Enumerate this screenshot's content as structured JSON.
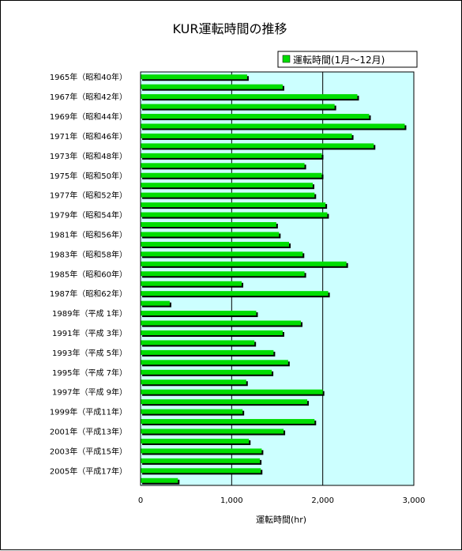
{
  "chart_data": {
    "type": "bar",
    "orientation": "horizontal",
    "title": "KUR運転時間の推移",
    "xlabel": "運転時間(hr)",
    "ylabel": "",
    "xlim": [
      0,
      3000
    ],
    "x_ticks": [
      "0",
      "1,000",
      "2,000",
      "3,000"
    ],
    "grid": "vertical",
    "legend_position": "top-right",
    "series": [
      {
        "name": "運転時間(1月〜12月)",
        "values": [
          1170,
          1560,
          2380,
          2130,
          2510,
          2900,
          2320,
          2560,
          1990,
          1800,
          1990,
          1890,
          1910,
          2030,
          2050,
          1490,
          1520,
          1630,
          1780,
          2260,
          1800,
          1110,
          2060,
          320,
          1270,
          1760,
          1560,
          1250,
          1460,
          1620,
          1440,
          1160,
          2000,
          1830,
          1120,
          1910,
          1570,
          1190,
          1330,
          1310,
          1320,
          410
        ]
      }
    ],
    "category_labels": [
      "1965年（昭和40年）",
      "",
      "1967年（昭和42年）",
      "",
      "1969年（昭和44年）",
      "",
      "1971年（昭和46年）",
      "",
      "1973年（昭和48年）",
      "",
      "1975年（昭和50年）",
      "",
      "1977年（昭和52年）",
      "",
      "1979年（昭和54年）",
      "",
      "1981年（昭和56年）",
      "",
      "1983年（昭和58年）",
      "",
      "1985年（昭和60年）",
      "",
      "1987年（昭和62年）",
      "",
      "1989年（平成 1年）",
      "",
      "1991年（平成 3年）",
      "",
      "1993年（平成 5年）",
      "",
      "1995年（平成 7年）",
      "",
      "1997年（平成 9年）",
      "",
      "1999年（平成11年）",
      "",
      "2001年（平成13年）",
      "",
      "2003年（平成15年）",
      "",
      "2005年（平成17年）",
      ""
    ],
    "colors": {
      "bar_fill": "#00dd00",
      "bar_shadow": "#000000",
      "plot_background": "#ccffff",
      "grid": "#000000"
    }
  }
}
